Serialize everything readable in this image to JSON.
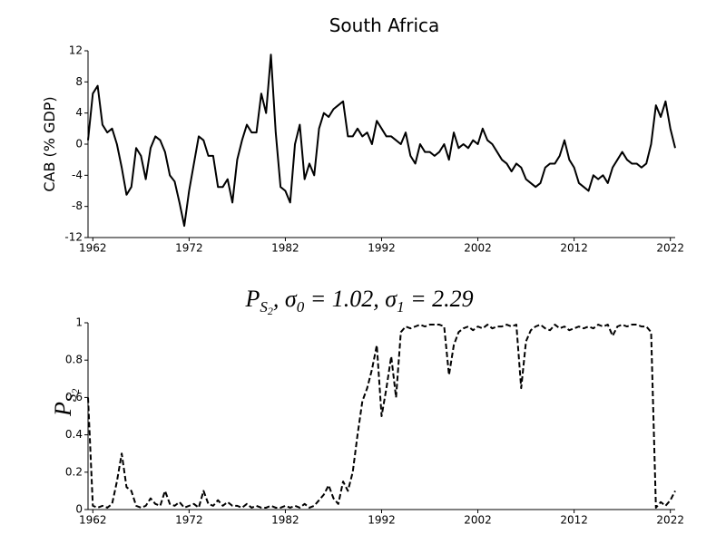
{
  "chart_data": [
    {
      "type": "line",
      "title": "South Africa",
      "ylabel": "CAB (% GDP)",
      "x": [
        1961.5,
        1962,
        1962.5,
        1963,
        1963.5,
        1964,
        1964.5,
        1965,
        1965.5,
        1966,
        1966.5,
        1967,
        1967.5,
        1968,
        1968.5,
        1969,
        1969.5,
        1970,
        1970.5,
        1971,
        1971.5,
        1972,
        1972.5,
        1973,
        1973.5,
        1974,
        1974.5,
        1975,
        1975.5,
        1976,
        1976.5,
        1977,
        1977.5,
        1978,
        1978.5,
        1979,
        1979.5,
        1980,
        1980.5,
        1981,
        1981.5,
        1982,
        1982.5,
        1983,
        1983.5,
        1984,
        1984.5,
        1985,
        1985.5,
        1986,
        1986.5,
        1987,
        1987.5,
        1988,
        1988.5,
        1989,
        1989.5,
        1990,
        1990.5,
        1991,
        1991.5,
        1992,
        1992.5,
        1993,
        1993.5,
        1994,
        1994.5,
        1995,
        1995.5,
        1996,
        1996.5,
        1997,
        1997.5,
        1998,
        1998.5,
        1999,
        1999.5,
        2000,
        2000.5,
        2001,
        2001.5,
        2002,
        2002.5,
        2003,
        2003.5,
        2004,
        2004.5,
        2005,
        2005.5,
        2006,
        2006.5,
        2007,
        2007.5,
        2008,
        2008.5,
        2009,
        2009.5,
        2010,
        2010.5,
        2011,
        2011.5,
        2012,
        2012.5,
        2013,
        2013.5,
        2014,
        2014.5,
        2015,
        2015.5,
        2016,
        2016.5,
        2017,
        2017.5,
        2018,
        2018.5,
        2019,
        2019.5,
        2020,
        2020.5,
        2021,
        2021.5,
        2022,
        2022.5
      ],
      "series": [
        {
          "color": "#000000",
          "line_style": "solid",
          "values": [
            0.5,
            6.5,
            7.5,
            2.5,
            1.5,
            2,
            0,
            -3,
            -6.5,
            -5.5,
            -0.5,
            -1.5,
            -4.5,
            -0.5,
            1,
            0.5,
            -1,
            -4,
            -4.8,
            -7.5,
            -10.5,
            -6,
            -2.5,
            1,
            0.5,
            -1.5,
            -1.5,
            -5.5,
            -5.5,
            -4.5,
            -7.5,
            -2,
            0.5,
            2.5,
            1.5,
            1.5,
            6.5,
            4,
            11.5,
            1.5,
            -5.5,
            -6,
            -7.5,
            0,
            2.5,
            -4.5,
            -2.5,
            -4,
            2,
            4,
            3.5,
            4.5,
            5,
            5.5,
            1,
            1,
            2,
            1,
            1.5,
            0,
            3,
            2,
            1,
            1,
            0.5,
            0,
            1.5,
            -1.5,
            -2.5,
            0,
            -1,
            -1,
            -1.5,
            -1,
            0,
            -2,
            1.5,
            -0.5,
            0,
            -0.5,
            0.5,
            0,
            2,
            0.5,
            0,
            -1,
            -2,
            -2.5,
            -3.5,
            -2.5,
            -3,
            -4.5,
            -5,
            -5.5,
            -5,
            -3,
            -2.5,
            -2.5,
            -1.5,
            0.5,
            -2,
            -3,
            -5,
            -5.5,
            -6,
            -4,
            -4.5,
            -4,
            -5,
            -3,
            -2,
            -1,
            -2,
            -2.5,
            -2.5,
            -3,
            -2.5,
            0,
            5,
            3.5,
            5.5,
            2,
            -0.5
          ]
        }
      ],
      "xlim": [
        1961.5,
        2022.5
      ],
      "xticks": [
        1962,
        1972,
        1982,
        1992,
        2002,
        2012,
        2022
      ],
      "ylim": [
        -12,
        12
      ],
      "yticks": [
        -12,
        -8,
        -4,
        0,
        4,
        8,
        12
      ]
    },
    {
      "type": "line",
      "title": [
        "P",
        "S",
        "2",
        ", σ",
        "0",
        " = 1.02, σ",
        "1",
        " = 2.29"
      ],
      "ylabel": [
        "P",
        "S",
        "2"
      ],
      "x": [
        1961.5,
        1962,
        1962.5,
        1963,
        1963.5,
        1964,
        1964.5,
        1965,
        1965.5,
        1966,
        1966.5,
        1967,
        1967.5,
        1968,
        1968.5,
        1969,
        1969.5,
        1970,
        1970.5,
        1971,
        1971.5,
        1972,
        1972.5,
        1973,
        1973.5,
        1974,
        1974.5,
        1975,
        1975.5,
        1976,
        1976.5,
        1977,
        1977.5,
        1978,
        1978.5,
        1979,
        1979.5,
        1980,
        1980.5,
        1981,
        1981.5,
        1982,
        1982.5,
        1983,
        1983.5,
        1984,
        1984.5,
        1985,
        1985.5,
        1986,
        1986.5,
        1987,
        1987.5,
        1988,
        1988.5,
        1989,
        1989.5,
        1990,
        1990.5,
        1991,
        1991.5,
        1992,
        1992.5,
        1993,
        1993.5,
        1994,
        1994.5,
        1995,
        1995.5,
        1996,
        1996.5,
        1997,
        1997.5,
        1998,
        1998.5,
        1999,
        1999.5,
        2000,
        2000.5,
        2001,
        2001.5,
        2002,
        2002.5,
        2003,
        2003.5,
        2004,
        2004.5,
        2005,
        2005.5,
        2006,
        2006.5,
        2007,
        2007.5,
        2008,
        2008.5,
        2009,
        2009.5,
        2010,
        2010.5,
        2011,
        2011.5,
        2012,
        2012.5,
        2013,
        2013.5,
        2014,
        2014.5,
        2015,
        2015.5,
        2016,
        2016.5,
        2017,
        2017.5,
        2018,
        2018.5,
        2019,
        2019.5,
        2020,
        2020.5,
        2021,
        2021.5,
        2022,
        2022.5
      ],
      "series": [
        {
          "color": "#000000",
          "line_style": "dashed",
          "values": [
            0.6,
            0.02,
            0.01,
            0.02,
            0.01,
            0.03,
            0.15,
            0.3,
            0.12,
            0.1,
            0.02,
            0.01,
            0.02,
            0.06,
            0.03,
            0.02,
            0.1,
            0.03,
            0.02,
            0.04,
            0.01,
            0.02,
            0.03,
            0.01,
            0.1,
            0.03,
            0.02,
            0.05,
            0.02,
            0.04,
            0.02,
            0.02,
            0.01,
            0.03,
            0.01,
            0.02,
            0.01,
            0.01,
            0.02,
            0.01,
            0.01,
            0.02,
            0.01,
            0.02,
            0.01,
            0.03,
            0.01,
            0.02,
            0.05,
            0.08,
            0.13,
            0.06,
            0.03,
            0.15,
            0.1,
            0.2,
            0.4,
            0.58,
            0.65,
            0.75,
            0.88,
            0.5,
            0.65,
            0.82,
            0.6,
            0.95,
            0.98,
            0.97,
            0.98,
            0.99,
            0.98,
            0.99,
            0.99,
            0.99,
            0.98,
            0.72,
            0.88,
            0.95,
            0.97,
            0.98,
            0.96,
            0.98,
            0.97,
            0.99,
            0.97,
            0.98,
            0.98,
            0.99,
            0.98,
            0.99,
            0.65,
            0.9,
            0.96,
            0.98,
            0.99,
            0.97,
            0.96,
            0.99,
            0.97,
            0.98,
            0.96,
            0.97,
            0.98,
            0.97,
            0.98,
            0.97,
            0.99,
            0.98,
            0.99,
            0.93,
            0.98,
            0.99,
            0.98,
            0.99,
            0.99,
            0.98,
            0.98,
            0.95,
            0.01,
            0.04,
            0.02,
            0.05,
            0.1
          ]
        }
      ],
      "xlim": [
        1961.5,
        2022.5
      ],
      "xticks": [
        1962,
        1972,
        1982,
        1992,
        2002,
        2012,
        2022
      ],
      "ylim": [
        0,
        1
      ],
      "yticks": [
        0,
        0.2,
        0.4,
        0.6,
        0.8,
        1
      ]
    }
  ]
}
